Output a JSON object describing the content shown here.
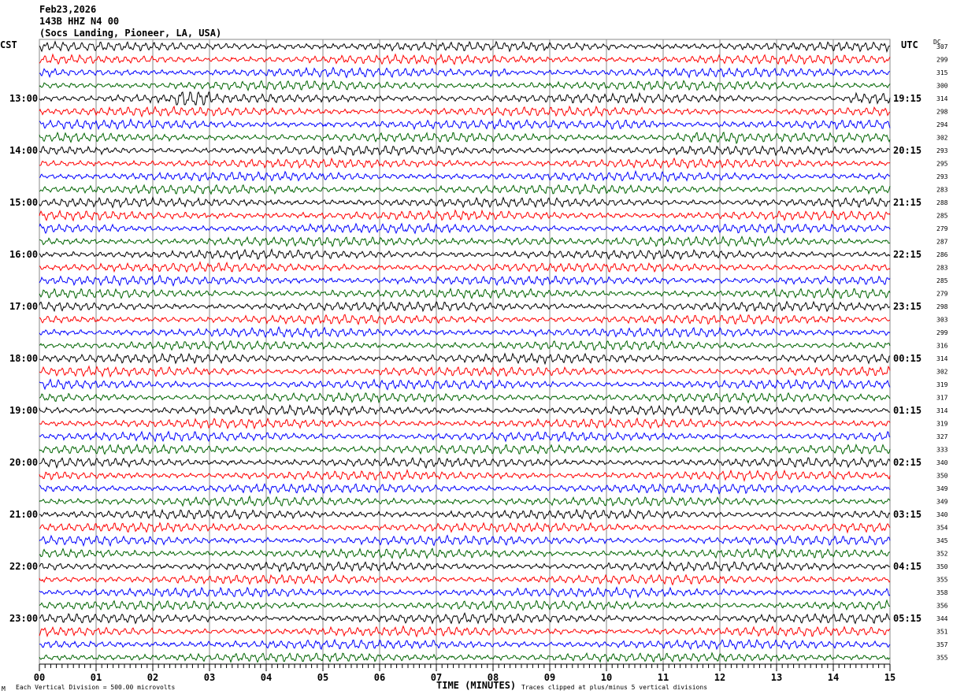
{
  "header": {
    "date": "Feb23,2026",
    "station": "143B HHZ N4 00",
    "location": "(Socs Landing, Pioneer, LA, USA)"
  },
  "left_tz": "CST",
  "right_tz": "UTC",
  "dc_label": "DC",
  "footer": {
    "scale_note": "Each Vertical Division =  500.00 microvolts",
    "xlabel": "TIME (MINUTES)",
    "clip_note": "Traces clipped at plus/minus 5 vertical divisions",
    "corner_mark": "M"
  },
  "chart_data": {
    "type": "line",
    "title": "143B HHZ N4 00 helicorder",
    "xlabel": "TIME (MINUTES)",
    "xlim": [
      0,
      15
    ],
    "x_ticks": [
      "00",
      "01",
      "02",
      "03",
      "04",
      "05",
      "06",
      "07",
      "08",
      "09",
      "10",
      "11",
      "12",
      "13",
      "14",
      "15"
    ],
    "trace_colors": [
      "#000000",
      "#ff0000",
      "#0000ff",
      "#006400"
    ],
    "traces_per_hour": 4,
    "left_hour_labels": [
      "13:00",
      "14:00",
      "15:00",
      "16:00",
      "17:00",
      "18:00",
      "19:00",
      "20:00",
      "21:00",
      "22:00",
      "23:00"
    ],
    "right_hour_labels": [
      "19:15",
      "20:15",
      "21:15",
      "22:15",
      "23:15",
      "00:15",
      "01:15",
      "02:15",
      "03:15",
      "04:15",
      "05:15"
    ],
    "dc_values": [
      307,
      299,
      315,
      300,
      314,
      298,
      294,
      302,
      293,
      295,
      293,
      283,
      288,
      285,
      279,
      287,
      286,
      283,
      285,
      279,
      298,
      303,
      299,
      316,
      314,
      302,
      319,
      317,
      314,
      319,
      327,
      333,
      340,
      350,
      349,
      349,
      340,
      354,
      345,
      352,
      350,
      355,
      358,
      356,
      344,
      351,
      357,
      355
    ],
    "events": [
      {
        "trace": 4,
        "minute_start": 2.4,
        "minute_end": 3.0,
        "amplitude": 2.2
      },
      {
        "trace": 6,
        "minute_start": 10.0,
        "minute_end": 10.9,
        "amplitude": 1.8
      },
      {
        "trace": 7,
        "minute_start": 11.2,
        "minute_end": 12.4,
        "amplitude": 1.6
      },
      {
        "trace": 2,
        "minute_start": 7.9,
        "minute_end": 8.3,
        "amplitude": 1.6
      },
      {
        "trace": 15,
        "minute_start": 8.2,
        "minute_end": 9.1,
        "amplitude": 1.8
      },
      {
        "trace": 4,
        "minute_start": 14.3,
        "minute_end": 15.0,
        "amplitude": 1.8
      }
    ]
  }
}
